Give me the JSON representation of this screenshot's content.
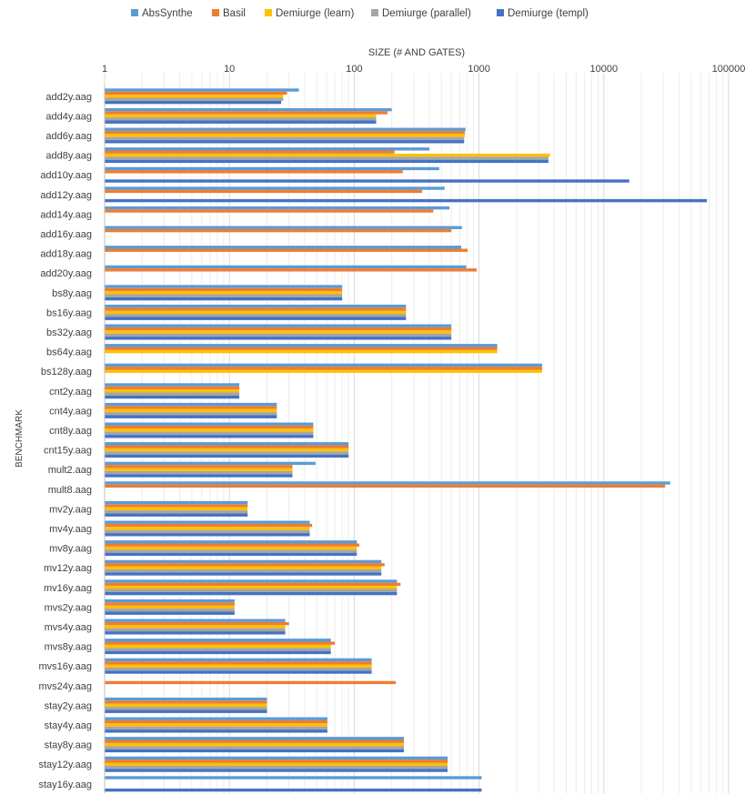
{
  "chart_data": {
    "type": "bar",
    "orientation": "horizontal",
    "scale": "log",
    "title": "",
    "xlabel": "SIZE (# AND GATES)",
    "ylabel": "BENCHMARK",
    "xlim": [
      1,
      100000
    ],
    "x_ticks": [
      "1",
      "10",
      "100",
      "1000",
      "10000",
      "100000"
    ],
    "x_tick_values": [
      1,
      10,
      100,
      1000,
      10000,
      100000
    ],
    "grid": "x-major-and-minor",
    "legend_position": "top",
    "categories": [
      "add2y.aag",
      "add4y.aag",
      "add6y.aag",
      "add8y.aag",
      "add10y.aag",
      "add12y.aag",
      "add14y.aag",
      "add16y.aag",
      "add18y.aag",
      "add20y.aag",
      "bs8y.aag",
      "bs16y.aag",
      "bs32y.aag",
      "bs64y.aag",
      "bs128y.aag",
      "cnt2y.aag",
      "cnt4y.aag",
      "cnt8y.aag",
      "cnt15y.aag",
      "mult2.aag",
      "mult8.aag",
      "mv2y.aag",
      "mv4y.aag",
      "mv8y.aag",
      "mv12y.aag",
      "mv16y.aag",
      "mvs2y.aag",
      "mvs4y.aag",
      "mvs8y.aag",
      "mvs16y.aag",
      "mvs24y.aag",
      "stay2y.aag",
      "stay4y.aag",
      "stay8y.aag",
      "stay12y.aag",
      "stay16y.aag"
    ],
    "series": [
      {
        "name": "AbsSynthe",
        "color": "#5B9BD5",
        "values": [
          36,
          200,
          780,
          400,
          480,
          530,
          580,
          730,
          720,
          790,
          80,
          260,
          600,
          1400,
          3200,
          12,
          24,
          47,
          90,
          49,
          34000,
          14,
          44,
          105,
          165,
          220,
          11,
          28,
          65,
          138,
          null,
          20,
          61,
          250,
          560,
          1050
        ]
      },
      {
        "name": "Basil",
        "color": "#ED7D31",
        "values": [
          29,
          185,
          770,
          210,
          245,
          350,
          430,
          600,
          810,
          960,
          80,
          260,
          600,
          1400,
          3200,
          12,
          24,
          47,
          90,
          32,
          31000,
          14,
          46,
          110,
          175,
          235,
          11,
          30,
          70,
          138,
          215,
          20,
          61,
          250,
          560,
          null
        ]
      },
      {
        "name": "Demiurge (learn)",
        "color": "#FFC000",
        "values": [
          27,
          150,
          770,
          3700,
          null,
          null,
          null,
          null,
          null,
          null,
          80,
          260,
          600,
          1400,
          3200,
          12,
          24,
          47,
          90,
          32,
          null,
          14,
          44,
          105,
          165,
          220,
          11,
          28,
          65,
          138,
          null,
          20,
          61,
          250,
          560,
          null
        ]
      },
      {
        "name": "Demiurge (parallel)",
        "color": "#A5A5A5",
        "values": [
          27,
          150,
          760,
          3600,
          null,
          null,
          null,
          null,
          null,
          null,
          80,
          260,
          600,
          null,
          null,
          12,
          24,
          47,
          90,
          32,
          null,
          14,
          44,
          105,
          165,
          220,
          11,
          28,
          65,
          138,
          null,
          20,
          61,
          250,
          560,
          null
        ]
      },
      {
        "name": "Demiurge (templ)",
        "color": "#4472C4",
        "values": [
          26,
          150,
          760,
          3600,
          16000,
          67000,
          null,
          null,
          null,
          null,
          80,
          260,
          600,
          null,
          null,
          12,
          24,
          47,
          90,
          32,
          null,
          14,
          44,
          105,
          165,
          220,
          11,
          28,
          65,
          138,
          null,
          20,
          61,
          250,
          560,
          1050
        ]
      }
    ]
  }
}
